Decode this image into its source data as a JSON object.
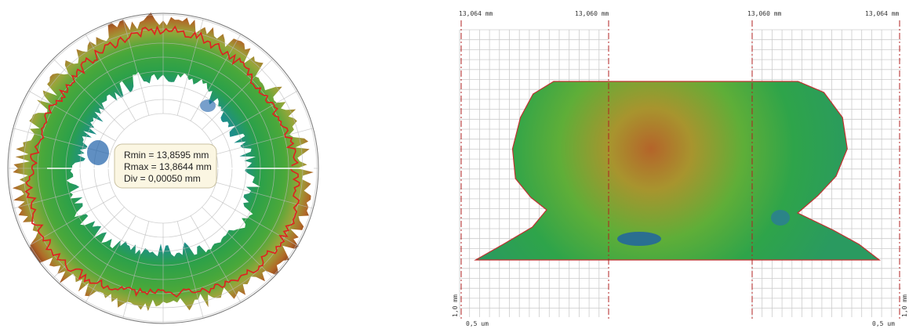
{
  "left_view": {
    "readout": [
      "Rmin = 13,8595 mm",
      "Rmax = 13,8644 mm",
      "Div = 0,00050 mm"
    ]
  },
  "right_view": {
    "top_labels": [
      "13,064 mm",
      "13,060 mm",
      "13,060 mm",
      "13,064 mm"
    ],
    "side_labels": [
      "1,0 mm",
      "1,0 mm"
    ],
    "bottom_labels": [
      "0,5 um",
      "0,5 um"
    ]
  }
}
